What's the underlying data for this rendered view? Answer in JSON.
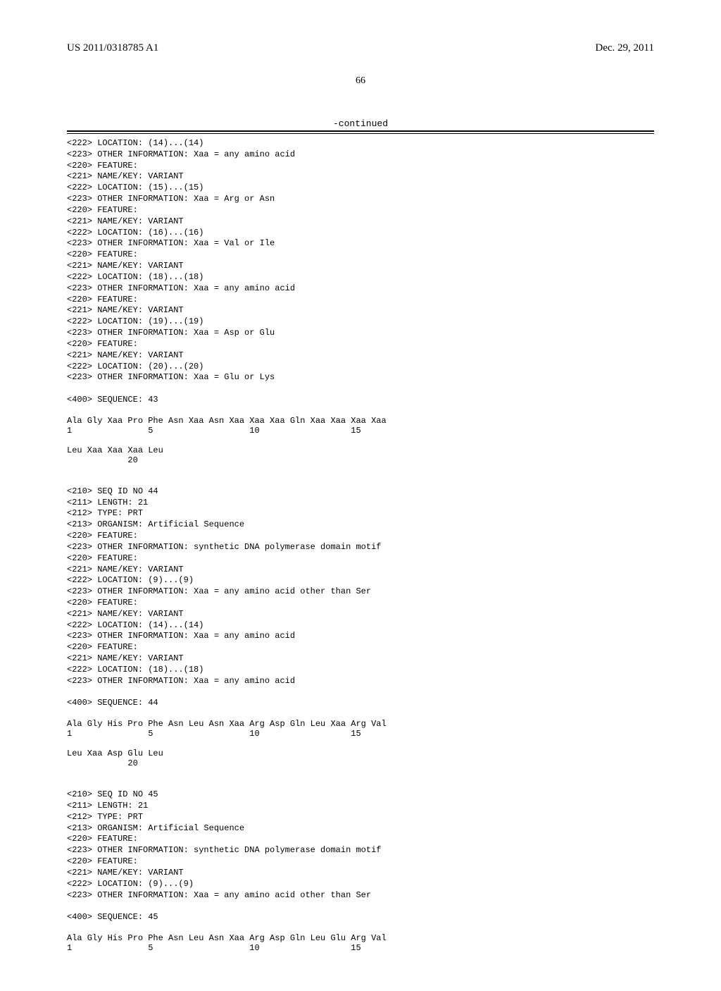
{
  "header": {
    "left": "US 2011/0318785 A1",
    "right": "Dec. 29, 2011"
  },
  "page_number": "66",
  "continued_label": "-continued",
  "features_block_1": [
    "<222> LOCATION: (14)...(14)",
    "<223> OTHER INFORMATION: Xaa = any amino acid",
    "<220> FEATURE:",
    "<221> NAME/KEY: VARIANT",
    "<222> LOCATION: (15)...(15)",
    "<223> OTHER INFORMATION: Xaa = Arg or Asn",
    "<220> FEATURE:",
    "<221> NAME/KEY: VARIANT",
    "<222> LOCATION: (16)...(16)",
    "<223> OTHER INFORMATION: Xaa = Val or Ile",
    "<220> FEATURE:",
    "<221> NAME/KEY: VARIANT",
    "<222> LOCATION: (18)...(18)",
    "<223> OTHER INFORMATION: Xaa = any amino acid",
    "<220> FEATURE:",
    "<221> NAME/KEY: VARIANT",
    "<222> LOCATION: (19)...(19)",
    "<223> OTHER INFORMATION: Xaa = Asp or Glu",
    "<220> FEATURE:",
    "<221> NAME/KEY: VARIANT",
    "<222> LOCATION: (20)...(20)",
    "<223> OTHER INFORMATION: Xaa = Glu or Lys",
    "",
    "<400> SEQUENCE: 43"
  ],
  "seq_43": {
    "line1": "Ala Gly Xaa Pro Phe Asn Xaa Asn Xaa Xaa Xaa Gln Xaa Xaa Xaa Xaa",
    "nums1": "1               5                   10                  15",
    "line2": "Leu Xaa Xaa Xaa Leu",
    "nums2": "            20"
  },
  "features_block_2": [
    "<210> SEQ ID NO 44",
    "<211> LENGTH: 21",
    "<212> TYPE: PRT",
    "<213> ORGANISM: Artificial Sequence",
    "<220> FEATURE:",
    "<223> OTHER INFORMATION: synthetic DNA polymerase domain motif",
    "<220> FEATURE:",
    "<221> NAME/KEY: VARIANT",
    "<222> LOCATION: (9)...(9)",
    "<223> OTHER INFORMATION: Xaa = any amino acid other than Ser",
    "<220> FEATURE:",
    "<221> NAME/KEY: VARIANT",
    "<222> LOCATION: (14)...(14)",
    "<223> OTHER INFORMATION: Xaa = any amino acid",
    "<220> FEATURE:",
    "<221> NAME/KEY: VARIANT",
    "<222> LOCATION: (18)...(18)",
    "<223> OTHER INFORMATION: Xaa = any amino acid",
    "",
    "<400> SEQUENCE: 44"
  ],
  "seq_44": {
    "line1": "Ala Gly His Pro Phe Asn Leu Asn Xaa Arg Asp Gln Leu Xaa Arg Val",
    "nums1": "1               5                   10                  15",
    "line2": "Leu Xaa Asp Glu Leu",
    "nums2": "            20"
  },
  "features_block_3": [
    "<210> SEQ ID NO 45",
    "<211> LENGTH: 21",
    "<212> TYPE: PRT",
    "<213> ORGANISM: Artificial Sequence",
    "<220> FEATURE:",
    "<223> OTHER INFORMATION: synthetic DNA polymerase domain motif",
    "<220> FEATURE:",
    "<221> NAME/KEY: VARIANT",
    "<222> LOCATION: (9)...(9)",
    "<223> OTHER INFORMATION: Xaa = any amino acid other than Ser",
    "",
    "<400> SEQUENCE: 45"
  ],
  "seq_45": {
    "line1": "Ala Gly His Pro Phe Asn Leu Asn Xaa Arg Asp Gln Leu Glu Arg Val",
    "nums1": "1               5                   10                  15"
  }
}
